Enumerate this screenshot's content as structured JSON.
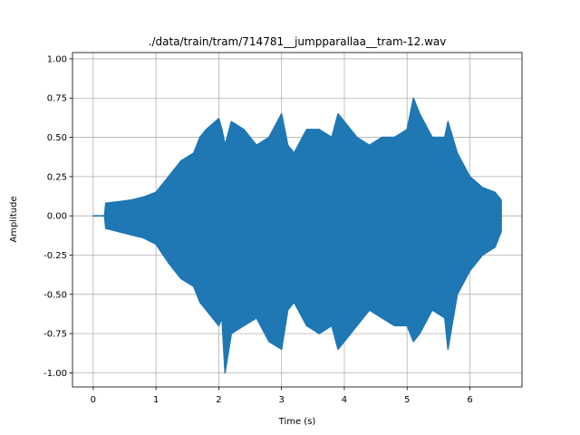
{
  "chart_data": {
    "type": "line",
    "title": "./data/train/tram/714781__jumpparallaa__tram-12.wav",
    "xlabel": "Time (s)",
    "ylabel": "Amplitude",
    "xlim": [
      -0.33,
      6.83
    ],
    "ylim": [
      -1.09,
      1.04
    ],
    "grid": true,
    "series": [
      {
        "color": "#1f77b4",
        "x": [
          0,
          0.18,
          0.2,
          0.4,
          0.6,
          0.8,
          1.0,
          1.2,
          1.4,
          1.6,
          1.7,
          1.8,
          2.0,
          2.05,
          2.1,
          2.2,
          2.4,
          2.6,
          2.8,
          3.0,
          3.1,
          3.2,
          3.4,
          3.6,
          3.8,
          3.9,
          4.0,
          4.2,
          4.4,
          4.6,
          4.8,
          5.0,
          5.1,
          5.2,
          5.4,
          5.6,
          5.65,
          5.8,
          6.0,
          6.2,
          6.4,
          6.5
        ],
        "upper": [
          0.0,
          0.0,
          0.08,
          0.09,
          0.1,
          0.12,
          0.15,
          0.25,
          0.35,
          0.4,
          0.5,
          0.55,
          0.62,
          0.55,
          0.45,
          0.6,
          0.55,
          0.45,
          0.5,
          0.65,
          0.45,
          0.4,
          0.55,
          0.55,
          0.5,
          0.65,
          0.6,
          0.5,
          0.45,
          0.5,
          0.5,
          0.55,
          0.75,
          0.65,
          0.5,
          0.5,
          0.6,
          0.4,
          0.25,
          0.18,
          0.15,
          0.1
        ],
        "lower": [
          0.0,
          0.0,
          -0.08,
          -0.1,
          -0.12,
          -0.14,
          -0.18,
          -0.3,
          -0.4,
          -0.45,
          -0.55,
          -0.6,
          -0.7,
          -0.65,
          -1.0,
          -0.75,
          -0.7,
          -0.65,
          -0.8,
          -0.85,
          -0.6,
          -0.55,
          -0.7,
          -0.75,
          -0.7,
          -0.85,
          -0.8,
          -0.7,
          -0.6,
          -0.65,
          -0.7,
          -0.7,
          -0.8,
          -0.75,
          -0.6,
          -0.65,
          -0.85,
          -0.5,
          -0.35,
          -0.25,
          -0.2,
          -0.1
        ]
      }
    ]
  }
}
